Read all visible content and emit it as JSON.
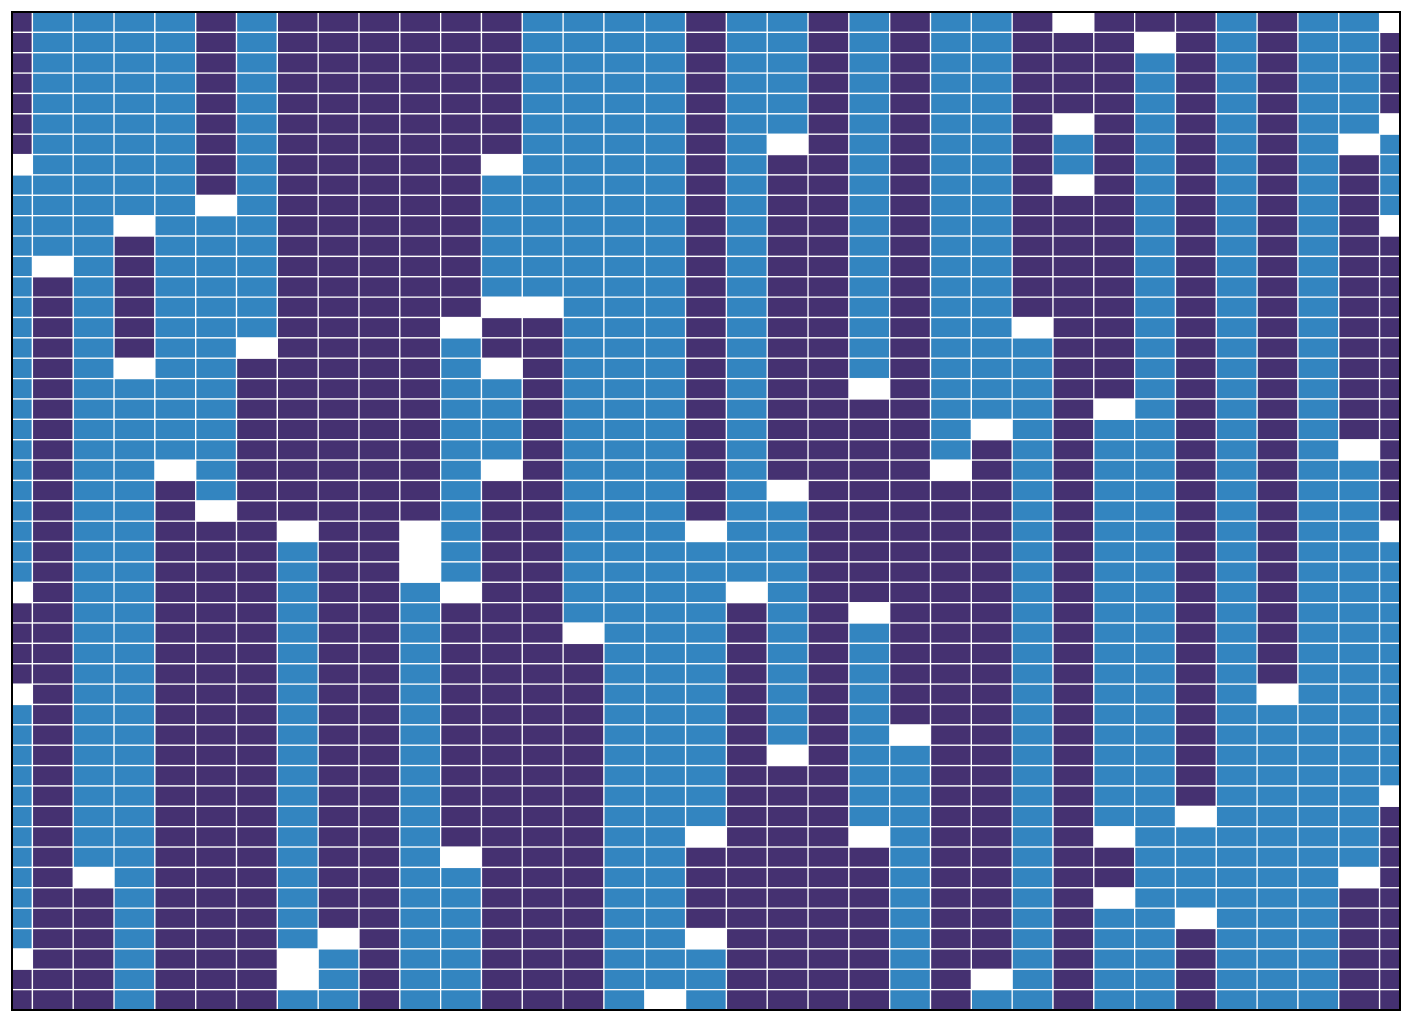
{
  "chart_data": {
    "type": "heatmap",
    "colors": [
      "#453171",
      "#3385c0"
    ],
    "xlim": [
      0,
      34
    ],
    "ylim": [
      49,
      0
    ],
    "z": [
      [
        0,
        0,
        0,
        0,
        0,
        0,
        0,
        null,
        1,
        1,
        1,
        1,
        1,
        1,
        1,
        1,
        1,
        1,
        1,
        1,
        1,
        1,
        1,
        1,
        1,
        1,
        1,
        1,
        null,
        0,
        0,
        0,
        0,
        null,
        1,
        1,
        1,
        1,
        1,
        1,
        1,
        1,
        1,
        1,
        1,
        1,
        null,
        0,
        0
      ],
      [
        1,
        1,
        1,
        1,
        1,
        1,
        1,
        1,
        1,
        1,
        1,
        1,
        null,
        0,
        0,
        0,
        0,
        0,
        0,
        0,
        0,
        0,
        0,
        0,
        0,
        0,
        0,
        0,
        0,
        0,
        0,
        0,
        0,
        0,
        0,
        0,
        0,
        0,
        0,
        0,
        0,
        0,
        0,
        0,
        0,
        0,
        0,
        0,
        0
      ],
      [
        1,
        1,
        1,
        1,
        1,
        1,
        1,
        1,
        1,
        1,
        1,
        1,
        1,
        1,
        1,
        1,
        1,
        1,
        1,
        1,
        1,
        1,
        1,
        1,
        1,
        1,
        1,
        1,
        1,
        1,
        1,
        1,
        1,
        1,
        1,
        1,
        1,
        1,
        1,
        1,
        1,
        1,
        null,
        0,
        0,
        0,
        0,
        0,
        0
      ],
      [
        1,
        1,
        1,
        1,
        1,
        1,
        1,
        1,
        1,
        1,
        null,
        0,
        0,
        0,
        0,
        0,
        0,
        null,
        1,
        1,
        1,
        1,
        1,
        1,
        1,
        1,
        1,
        1,
        1,
        1,
        1,
        1,
        1,
        1,
        1,
        1,
        1,
        1,
        1,
        1,
        1,
        1,
        1,
        1,
        1,
        1,
        1,
        1,
        1
      ],
      [
        1,
        1,
        1,
        1,
        1,
        1,
        1,
        1,
        1,
        1,
        1,
        1,
        1,
        1,
        1,
        1,
        1,
        1,
        1,
        1,
        1,
        1,
        null,
        0,
        0,
        0,
        0,
        0,
        0,
        0,
        0,
        0,
        0,
        0,
        0,
        0,
        0,
        0,
        0,
        0,
        0,
        0,
        0,
        0,
        0,
        0,
        0,
        0,
        0
      ],
      [
        0,
        0,
        0,
        0,
        0,
        0,
        0,
        0,
        0,
        null,
        1,
        1,
        1,
        1,
        1,
        1,
        1,
        1,
        1,
        1,
        1,
        1,
        1,
        1,
        null,
        0,
        0,
        0,
        0,
        0,
        0,
        0,
        0,
        0,
        0,
        0,
        0,
        0,
        0,
        0,
        0,
        0,
        0,
        0,
        0,
        0,
        0,
        0,
        0
      ],
      [
        1,
        1,
        1,
        1,
        1,
        1,
        1,
        1,
        1,
        1,
        1,
        1,
        1,
        1,
        1,
        1,
        null,
        0,
        0,
        0,
        0,
        0,
        0,
        0,
        0,
        0,
        0,
        0,
        0,
        0,
        0,
        0,
        0,
        0,
        0,
        0,
        0,
        0,
        0,
        0,
        0,
        0,
        0,
        0,
        0,
        0,
        0,
        0,
        0
      ],
      [
        0,
        0,
        0,
        0,
        0,
        0,
        0,
        0,
        0,
        0,
        0,
        0,
        0,
        0,
        0,
        0,
        0,
        0,
        0,
        0,
        0,
        0,
        0,
        0,
        0,
        null,
        1,
        1,
        1,
        1,
        1,
        1,
        1,
        1,
        1,
        1,
        1,
        1,
        1,
        1,
        1,
        1,
        1,
        1,
        1,
        1,
        null,
        null,
        1
      ],
      [
        0,
        0,
        0,
        0,
        0,
        0,
        0,
        0,
        0,
        0,
        0,
        0,
        0,
        0,
        0,
        0,
        0,
        0,
        0,
        0,
        0,
        0,
        0,
        0,
        0,
        0,
        0,
        0,
        0,
        0,
        0,
        0,
        0,
        0,
        0,
        0,
        0,
        0,
        0,
        0,
        0,
        0,
        0,
        0,
        0,
        null,
        1,
        1,
        1
      ],
      [
        0,
        0,
        0,
        0,
        0,
        0,
        0,
        0,
        0,
        0,
        0,
        0,
        0,
        0,
        0,
        0,
        0,
        0,
        0,
        0,
        0,
        0,
        0,
        0,
        0,
        0,
        0,
        0,
        0,
        0,
        0,
        0,
        0,
        0,
        0,
        0,
        0,
        0,
        0,
        0,
        0,
        0,
        0,
        0,
        0,
        0,
        0,
        0,
        0
      ],
      [
        0,
        0,
        0,
        0,
        0,
        0,
        0,
        0,
        0,
        0,
        0,
        0,
        0,
        0,
        0,
        0,
        0,
        0,
        0,
        0,
        0,
        0,
        0,
        0,
        0,
        null,
        null,
        null,
        1,
        1,
        1,
        1,
        1,
        1,
        1,
        1,
        1,
        1,
        1,
        1,
        1,
        1,
        1,
        1,
        1,
        1,
        1,
        1,
        1
      ],
      [
        0,
        0,
        0,
        0,
        0,
        0,
        0,
        0,
        0,
        0,
        0,
        0,
        0,
        0,
        0,
        null,
        1,
        1,
        1,
        1,
        1,
        1,
        1,
        1,
        1,
        1,
        1,
        1,
        null,
        0,
        0,
        0,
        0,
        0,
        0,
        0,
        0,
        0,
        0,
        0,
        0,
        null,
        1,
        1,
        1,
        1,
        1,
        1,
        1
      ],
      [
        0,
        0,
        0,
        0,
        0,
        0,
        0,
        null,
        1,
        1,
        1,
        1,
        1,
        1,
        null,
        0,
        0,
        null,
        1,
        1,
        1,
        1,
        null,
        0,
        0,
        0,
        0,
        0,
        0,
        0,
        0,
        0,
        0,
        0,
        0,
        0,
        0,
        0,
        0,
        0,
        0,
        0,
        0,
        0,
        0,
        0,
        0,
        0,
        0
      ],
      [
        1,
        1,
        1,
        1,
        1,
        1,
        1,
        1,
        1,
        1,
        1,
        1,
        1,
        1,
        null,
        0,
        0,
        0,
        0,
        0,
        0,
        0,
        0,
        0,
        0,
        0,
        0,
        0,
        0,
        0,
        0,
        0,
        0,
        0,
        0,
        0,
        0,
        0,
        0,
        0,
        0,
        0,
        0,
        0,
        0,
        0,
        0,
        0,
        0
      ],
      [
        1,
        1,
        1,
        1,
        1,
        1,
        1,
        1,
        1,
        1,
        1,
        1,
        1,
        1,
        1,
        1,
        1,
        1,
        1,
        1,
        1,
        1,
        1,
        1,
        1,
        1,
        1,
        1,
        1,
        1,
        null,
        0,
        0,
        0,
        0,
        0,
        0,
        0,
        0,
        0,
        0,
        0,
        0,
        0,
        0,
        0,
        0,
        0,
        0
      ],
      [
        1,
        1,
        1,
        1,
        1,
        1,
        1,
        1,
        1,
        1,
        1,
        1,
        1,
        1,
        1,
        1,
        1,
        1,
        1,
        1,
        1,
        1,
        1,
        1,
        1,
        1,
        1,
        1,
        1,
        1,
        1,
        1,
        1,
        1,
        1,
        1,
        1,
        1,
        1,
        1,
        1,
        1,
        1,
        1,
        1,
        1,
        1,
        1,
        1
      ],
      [
        1,
        1,
        1,
        1,
        1,
        1,
        1,
        1,
        1,
        1,
        1,
        1,
        1,
        1,
        1,
        1,
        1,
        1,
        1,
        1,
        1,
        1,
        1,
        1,
        1,
        1,
        1,
        1,
        1,
        1,
        1,
        1,
        1,
        1,
        1,
        1,
        1,
        1,
        1,
        1,
        1,
        1,
        1,
        1,
        1,
        1,
        1,
        1,
        null
      ],
      [
        0,
        0,
        0,
        0,
        0,
        0,
        0,
        0,
        0,
        0,
        0,
        0,
        0,
        0,
        0,
        0,
        0,
        0,
        0,
        0,
        0,
        0,
        0,
        0,
        0,
        null,
        1,
        1,
        1,
        1,
        1,
        1,
        1,
        1,
        1,
        1,
        1,
        1,
        1,
        1,
        null,
        0,
        0,
        0,
        0,
        null,
        1,
        1,
        1
      ],
      [
        1,
        1,
        1,
        1,
        1,
        1,
        1,
        1,
        1,
        1,
        1,
        1,
        1,
        1,
        1,
        1,
        1,
        1,
        1,
        1,
        1,
        1,
        1,
        1,
        1,
        1,
        1,
        1,
        null,
        0,
        0,
        0,
        0,
        0,
        0,
        0,
        0,
        0,
        0,
        0,
        0,
        0,
        0,
        0,
        0,
        0,
        0,
        0,
        0
      ],
      [
        1,
        1,
        1,
        1,
        1,
        1,
        null,
        0,
        0,
        0,
        0,
        0,
        0,
        0,
        0,
        0,
        0,
        0,
        0,
        0,
        0,
        0,
        0,
        null,
        1,
        1,
        1,
        1,
        1,
        1,
        1,
        1,
        1,
        1,
        1,
        1,
        null,
        0,
        0,
        0,
        0,
        0,
        0,
        0,
        0,
        0,
        0,
        0,
        0
      ],
      [
        0,
        0,
        0,
        0,
        0,
        0,
        0,
        0,
        0,
        0,
        0,
        0,
        0,
        0,
        0,
        0,
        0,
        0,
        0,
        0,
        0,
        0,
        0,
        0,
        0,
        0,
        0,
        0,
        0,
        0,
        0,
        0,
        0,
        0,
        0,
        0,
        0,
        0,
        0,
        0,
        0,
        0,
        0,
        0,
        0,
        0,
        0,
        0,
        0
      ],
      [
        1,
        1,
        1,
        1,
        1,
        1,
        1,
        1,
        1,
        1,
        1,
        1,
        1,
        1,
        1,
        1,
        1,
        1,
        null,
        0,
        0,
        0,
        0,
        0,
        0,
        0,
        0,
        0,
        0,
        null,
        1,
        1,
        1,
        1,
        1,
        1,
        1,
        1,
        1,
        1,
        null,
        0,
        0,
        0,
        0,
        0,
        0,
        0,
        0
      ],
      [
        0,
        0,
        0,
        0,
        0,
        0,
        0,
        0,
        0,
        0,
        0,
        0,
        0,
        0,
        0,
        0,
        0,
        0,
        0,
        0,
        0,
        0,
        0,
        0,
        0,
        0,
        0,
        0,
        0,
        0,
        0,
        0,
        0,
        0,
        0,
        null,
        1,
        1,
        1,
        1,
        1,
        1,
        1,
        1,
        1,
        1,
        1,
        1,
        1
      ],
      [
        1,
        1,
        1,
        1,
        1,
        1,
        1,
        1,
        1,
        1,
        1,
        1,
        1,
        1,
        1,
        1,
        1,
        1,
        1,
        1,
        1,
        1,
        null,
        0,
        0,
        0,
        0,
        0,
        0,
        0,
        0,
        0,
        0,
        0,
        0,
        0,
        0,
        0,
        0,
        0,
        0,
        0,
        0,
        0,
        0,
        0,
        0,
        0,
        0
      ],
      [
        1,
        1,
        1,
        1,
        1,
        1,
        1,
        1,
        1,
        1,
        1,
        1,
        1,
        1,
        1,
        1,
        1,
        1,
        1,
        1,
        null,
        0,
        0,
        0,
        0,
        0,
        0,
        0,
        0,
        0,
        0,
        0,
        0,
        0,
        0,
        0,
        0,
        0,
        0,
        0,
        0,
        0,
        0,
        0,
        0,
        0,
        0,
        null,
        1
      ],
      [
        0,
        0,
        0,
        0,
        0,
        0,
        0,
        0,
        0,
        0,
        0,
        0,
        0,
        0,
        0,
        null,
        1,
        1,
        1,
        1,
        1,
        1,
        1,
        1,
        1,
        1,
        1,
        1,
        1,
        1,
        1,
        1,
        1,
        1,
        1,
        1,
        1,
        1,
        1,
        1,
        1,
        1,
        1,
        1,
        1,
        1,
        1,
        1,
        1
      ],
      [
        null,
        0,
        0,
        0,
        0,
        null,
        1,
        1,
        null,
        0,
        0,
        0,
        0,
        0,
        0,
        0,
        0,
        0,
        0,
        0,
        0,
        0,
        0,
        0,
        0,
        0,
        0,
        0,
        0,
        0,
        0,
        0,
        0,
        0,
        0,
        0,
        0,
        0,
        0,
        0,
        0,
        0,
        0,
        0,
        0,
        0,
        0,
        0,
        0
      ],
      [
        0,
        0,
        0,
        0,
        0,
        0,
        0,
        0,
        0,
        0,
        0,
        0,
        0,
        0,
        0,
        0,
        0,
        0,
        0,
        null,
        1,
        1,
        1,
        1,
        1,
        1,
        1,
        1,
        1,
        1,
        1,
        1,
        1,
        1,
        1,
        1,
        1,
        1,
        1,
        1,
        null,
        0,
        0,
        null,
        1,
        1,
        1,
        1,
        1
      ],
      [
        0,
        null,
        1,
        1,
        1,
        1,
        1,
        1,
        1,
        1,
        1,
        1,
        1,
        1,
        1,
        1,
        1,
        1,
        1,
        1,
        1,
        1,
        1,
        1,
        1,
        1,
        1,
        1,
        1,
        1,
        1,
        1,
        1,
        1,
        1,
        1,
        1,
        1,
        1,
        1,
        1,
        1,
        1,
        1,
        1,
        1,
        1,
        1,
        1
      ],
      [
        0,
        0,
        0,
        0,
        0,
        0,
        0,
        0,
        0,
        0,
        0,
        0,
        0,
        0,
        0,
        0,
        0,
        0,
        0,
        0,
        0,
        0,
        0,
        0,
        0,
        0,
        0,
        0,
        0,
        0,
        0,
        0,
        0,
        0,
        0,
        0,
        0,
        0,
        0,
        null,
        1,
        1,
        1,
        1,
        null,
        0,
        0,
        0,
        0
      ],
      [
        1,
        1,
        1,
        1,
        1,
        1,
        1,
        1,
        1,
        1,
        1,
        1,
        1,
        1,
        1,
        1,
        1,
        1,
        1,
        1,
        1,
        1,
        1,
        1,
        1,
        1,
        1,
        1,
        1,
        1,
        1,
        1,
        1,
        1,
        1,
        1,
        1,
        1,
        1,
        1,
        1,
        1,
        1,
        1,
        1,
        1,
        1,
        1,
        1
      ],
      [
        0,
        0,
        0,
        0,
        0,
        0,
        0,
        0,
        0,
        0,
        0,
        0,
        0,
        0,
        0,
        0,
        0,
        0,
        0,
        0,
        0,
        0,
        0,
        0,
        0,
        0,
        0,
        0,
        0,
        0,
        0,
        0,
        0,
        null,
        1,
        1,
        1,
        1,
        1,
        1,
        1,
        1,
        1,
        1,
        1,
        1,
        1,
        1,
        1
      ],
      [
        1,
        1,
        1,
        1,
        1,
        1,
        1,
        1,
        1,
        1,
        1,
        1,
        1,
        1,
        1,
        1,
        1,
        1,
        1,
        1,
        1,
        1,
        1,
        1,
        1,
        1,
        1,
        1,
        1,
        1,
        1,
        1,
        1,
        1,
        1,
        1,
        1,
        1,
        1,
        1,
        1,
        1,
        1,
        1,
        1,
        1,
        1,
        1,
        1
      ],
      [
        1,
        1,
        1,
        1,
        1,
        1,
        null,
        0,
        0,
        0,
        0,
        0,
        0,
        0,
        0,
        0,
        0,
        0,
        0,
        0,
        0,
        null,
        1,
        1,
        1,
        1,
        1,
        1,
        1,
        1,
        1,
        1,
        1,
        1,
        1,
        1,
        1,
        1,
        1,
        1,
        1,
        1,
        null,
        0,
        0,
        0,
        0,
        0,
        0
      ],
      [
        null,
        0,
        0,
        0,
        0,
        null,
        1,
        1,
        1,
        1,
        null,
        0,
        0,
        0,
        0,
        0,
        0,
        0,
        0,
        0,
        0,
        0,
        0,
        0,
        0,
        null,
        1,
        1,
        1,
        1,
        1,
        1,
        1,
        1,
        1,
        1,
        1,
        1,
        null,
        0,
        0,
        0,
        0,
        0,
        0,
        0,
        0,
        0,
        0
      ]
    ]
  }
}
